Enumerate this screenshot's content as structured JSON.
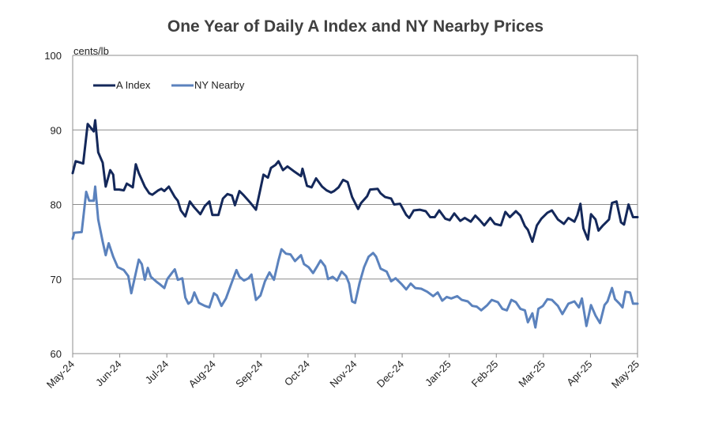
{
  "chart_data": {
    "type": "line",
    "title": "One Year of Daily A Index and NY Nearby Prices",
    "ylabel": "cents/lb",
    "xlabel": "",
    "ylim": [
      60,
      100
    ],
    "yticks": [
      60,
      70,
      80,
      90,
      100
    ],
    "grid": true,
    "legend_position": "top-left",
    "x_tick_labels": [
      "May-24",
      "Jun-24",
      "Jul-24",
      "Aug-24",
      "Sep-24",
      "Oct-24",
      "Nov-24",
      "Dec-24",
      "Jan-25",
      "Feb-25",
      "Mar-25",
      "Apr-25",
      "May-25"
    ],
    "series": [
      {
        "name": "A Index",
        "color": "#14285a",
        "points": [
          [
            "2024-05-01",
            84.2
          ],
          [
            "2024-05-03",
            85.8
          ],
          [
            "2024-05-08",
            85.5
          ],
          [
            "2024-05-11",
            90.8
          ],
          [
            "2024-05-15",
            89.8
          ],
          [
            "2024-05-16",
            91.3
          ],
          [
            "2024-05-18",
            87.0
          ],
          [
            "2024-05-21",
            85.6
          ],
          [
            "2024-05-23",
            82.4
          ],
          [
            "2024-05-26",
            84.6
          ],
          [
            "2024-05-28",
            84.0
          ],
          [
            "2024-05-29",
            82.0
          ],
          [
            "2024-06-01",
            82.0
          ],
          [
            "2024-06-04",
            81.9
          ],
          [
            "2024-06-06",
            82.8
          ],
          [
            "2024-06-10",
            82.3
          ],
          [
            "2024-06-12",
            85.4
          ],
          [
            "2024-06-14",
            84.2
          ],
          [
            "2024-06-18",
            82.4
          ],
          [
            "2024-06-21",
            81.5
          ],
          [
            "2024-06-23",
            81.3
          ],
          [
            "2024-06-27",
            81.9
          ],
          [
            "2024-06-29",
            82.1
          ],
          [
            "2024-07-01",
            81.8
          ],
          [
            "2024-07-04",
            82.4
          ],
          [
            "2024-07-08",
            81.0
          ],
          [
            "2024-07-10",
            80.5
          ],
          [
            "2024-07-12",
            79.2
          ],
          [
            "2024-07-15",
            78.4
          ],
          [
            "2024-07-18",
            80.4
          ],
          [
            "2024-07-21",
            79.6
          ],
          [
            "2024-07-25",
            78.7
          ],
          [
            "2024-07-28",
            79.8
          ],
          [
            "2024-07-31",
            80.4
          ],
          [
            "2024-08-02",
            78.6
          ],
          [
            "2024-08-06",
            78.6
          ],
          [
            "2024-08-09",
            80.8
          ],
          [
            "2024-08-12",
            81.4
          ],
          [
            "2024-08-15",
            81.2
          ],
          [
            "2024-08-17",
            79.9
          ],
          [
            "2024-08-20",
            81.8
          ],
          [
            "2024-08-23",
            81.2
          ],
          [
            "2024-08-27",
            80.3
          ],
          [
            "2024-08-31",
            79.3
          ],
          [
            "2024-09-03",
            82.1
          ],
          [
            "2024-09-05",
            84.0
          ],
          [
            "2024-09-08",
            83.6
          ],
          [
            "2024-09-10",
            84.9
          ],
          [
            "2024-09-13",
            85.3
          ],
          [
            "2024-09-15",
            85.8
          ],
          [
            "2024-09-18",
            84.6
          ],
          [
            "2024-09-21",
            85.1
          ],
          [
            "2024-09-25",
            84.5
          ],
          [
            "2024-09-30",
            83.8
          ],
          [
            "2024-10-01",
            84.8
          ],
          [
            "2024-10-04",
            82.5
          ],
          [
            "2024-10-07",
            82.3
          ],
          [
            "2024-10-10",
            83.5
          ],
          [
            "2024-10-14",
            82.4
          ],
          [
            "2024-10-17",
            81.9
          ],
          [
            "2024-10-20",
            81.6
          ],
          [
            "2024-10-22",
            81.8
          ],
          [
            "2024-10-25",
            82.3
          ],
          [
            "2024-10-28",
            83.3
          ],
          [
            "2024-10-31",
            83.0
          ],
          [
            "2024-11-03",
            81.0
          ],
          [
            "2024-11-07",
            79.4
          ],
          [
            "2024-11-09",
            80.2
          ],
          [
            "2024-11-13",
            81.1
          ],
          [
            "2024-11-15",
            82.0
          ],
          [
            "2024-11-20",
            82.1
          ],
          [
            "2024-11-22",
            81.5
          ],
          [
            "2024-11-25",
            81.0
          ],
          [
            "2024-11-29",
            80.8
          ],
          [
            "2024-12-01",
            80.0
          ],
          [
            "2024-12-05",
            80.1
          ],
          [
            "2024-12-09",
            78.6
          ],
          [
            "2024-12-11",
            78.2
          ],
          [
            "2024-12-14",
            79.2
          ],
          [
            "2024-12-18",
            79.3
          ],
          [
            "2024-12-22",
            79.1
          ],
          [
            "2024-12-25",
            78.3
          ],
          [
            "2024-12-28",
            78.3
          ],
          [
            "2024-12-31",
            79.2
          ],
          [
            "2025-01-04",
            78.1
          ],
          [
            "2025-01-07",
            77.9
          ],
          [
            "2025-01-10",
            78.8
          ],
          [
            "2025-01-14",
            77.8
          ],
          [
            "2025-01-17",
            78.2
          ],
          [
            "2025-01-21",
            77.7
          ],
          [
            "2025-01-24",
            78.5
          ],
          [
            "2025-01-27",
            77.9
          ],
          [
            "2025-01-30",
            77.2
          ],
          [
            "2025-02-03",
            78.2
          ],
          [
            "2025-02-06",
            77.4
          ],
          [
            "2025-02-10",
            77.2
          ],
          [
            "2025-02-13",
            79.0
          ],
          [
            "2025-02-16",
            78.3
          ],
          [
            "2025-02-20",
            79.1
          ],
          [
            "2025-02-23",
            78.5
          ],
          [
            "2025-02-26",
            77.1
          ],
          [
            "2025-02-28",
            76.6
          ],
          [
            "2025-03-03",
            75.0
          ],
          [
            "2025-03-06",
            77.2
          ],
          [
            "2025-03-09",
            78.1
          ],
          [
            "2025-03-13",
            78.9
          ],
          [
            "2025-03-16",
            79.2
          ],
          [
            "2025-03-20",
            78.0
          ],
          [
            "2025-03-24",
            77.4
          ],
          [
            "2025-03-27",
            78.2
          ],
          [
            "2025-03-31",
            77.7
          ],
          [
            "2025-04-02",
            78.6
          ],
          [
            "2025-04-04",
            80.1
          ],
          [
            "2025-04-06",
            76.8
          ],
          [
            "2025-04-09",
            75.3
          ],
          [
            "2025-04-11",
            78.7
          ],
          [
            "2025-04-14",
            78.0
          ],
          [
            "2025-04-16",
            76.5
          ],
          [
            "2025-04-19",
            77.2
          ],
          [
            "2025-04-23",
            78.0
          ],
          [
            "2025-04-25",
            80.2
          ],
          [
            "2025-04-28",
            80.4
          ],
          [
            "2025-05-01",
            77.6
          ],
          [
            "2025-05-03",
            77.3
          ],
          [
            "2025-05-06",
            80.0
          ],
          [
            "2025-05-09",
            78.3
          ],
          [
            "2025-05-12",
            78.3
          ]
        ]
      },
      {
        "name": "NY Nearby",
        "color": "#5b82bd",
        "points": [
          [
            "2024-05-01",
            75.4
          ],
          [
            "2024-05-02",
            76.2
          ],
          [
            "2024-05-07",
            76.3
          ],
          [
            "2024-05-10",
            81.7
          ],
          [
            "2024-05-12",
            80.5
          ],
          [
            "2024-05-15",
            80.5
          ],
          [
            "2024-05-16",
            82.4
          ],
          [
            "2024-05-18",
            78.0
          ],
          [
            "2024-05-21",
            75.0
          ],
          [
            "2024-05-23",
            73.2
          ],
          [
            "2024-05-25",
            74.8
          ],
          [
            "2024-05-28",
            73.0
          ],
          [
            "2024-05-31",
            71.6
          ],
          [
            "2024-06-04",
            71.2
          ],
          [
            "2024-06-07",
            70.4
          ],
          [
            "2024-06-09",
            68.1
          ],
          [
            "2024-06-12",
            70.8
          ],
          [
            "2024-06-14",
            72.6
          ],
          [
            "2024-06-16",
            72.0
          ],
          [
            "2024-06-18",
            69.9
          ],
          [
            "2024-06-20",
            71.5
          ],
          [
            "2024-06-22",
            70.3
          ],
          [
            "2024-06-26",
            69.6
          ],
          [
            "2024-06-28",
            69.3
          ],
          [
            "2024-07-01",
            68.8
          ],
          [
            "2024-07-03",
            70.0
          ],
          [
            "2024-07-06",
            70.8
          ],
          [
            "2024-07-08",
            71.3
          ],
          [
            "2024-07-10",
            69.9
          ],
          [
            "2024-07-13",
            70.1
          ],
          [
            "2024-07-15",
            67.5
          ],
          [
            "2024-07-17",
            66.7
          ],
          [
            "2024-07-19",
            67.0
          ],
          [
            "2024-07-21",
            68.2
          ],
          [
            "2024-07-24",
            66.8
          ],
          [
            "2024-07-28",
            66.4
          ],
          [
            "2024-07-31",
            66.2
          ],
          [
            "2024-08-03",
            68.1
          ],
          [
            "2024-08-05",
            67.8
          ],
          [
            "2024-08-08",
            66.4
          ],
          [
            "2024-08-11",
            67.4
          ],
          [
            "2024-08-15",
            69.6
          ],
          [
            "2024-08-18",
            71.2
          ],
          [
            "2024-08-20",
            70.3
          ],
          [
            "2024-08-23",
            69.8
          ],
          [
            "2024-08-26",
            70.1
          ],
          [
            "2024-08-28",
            70.6
          ],
          [
            "2024-08-31",
            67.2
          ],
          [
            "2024-09-03",
            67.8
          ],
          [
            "2024-09-06",
            69.7
          ],
          [
            "2024-09-09",
            70.9
          ],
          [
            "2024-09-12",
            69.9
          ],
          [
            "2024-09-15",
            72.5
          ],
          [
            "2024-09-17",
            74.0
          ],
          [
            "2024-09-20",
            73.4
          ],
          [
            "2024-09-23",
            73.3
          ],
          [
            "2024-09-26",
            72.4
          ],
          [
            "2024-09-30",
            73.2
          ],
          [
            "2024-10-02",
            72.0
          ],
          [
            "2024-10-05",
            71.6
          ],
          [
            "2024-10-08",
            70.8
          ],
          [
            "2024-10-11",
            71.8
          ],
          [
            "2024-10-13",
            72.5
          ],
          [
            "2024-10-16",
            71.7
          ],
          [
            "2024-10-18",
            70.0
          ],
          [
            "2024-10-21",
            70.3
          ],
          [
            "2024-10-24",
            69.8
          ],
          [
            "2024-10-27",
            71.0
          ],
          [
            "2024-10-30",
            70.4
          ],
          [
            "2024-11-01",
            69.4
          ],
          [
            "2024-11-03",
            67.0
          ],
          [
            "2024-11-05",
            66.8
          ],
          [
            "2024-11-08",
            69.5
          ],
          [
            "2024-11-11",
            71.6
          ],
          [
            "2024-11-14",
            73.0
          ],
          [
            "2024-11-17",
            73.5
          ],
          [
            "2024-11-19",
            73.0
          ],
          [
            "2024-11-22",
            71.4
          ],
          [
            "2024-11-26",
            71.0
          ],
          [
            "2024-11-29",
            69.7
          ],
          [
            "2024-12-02",
            70.1
          ],
          [
            "2024-12-06",
            69.3
          ],
          [
            "2024-12-09",
            68.6
          ],
          [
            "2024-12-12",
            69.4
          ],
          [
            "2024-12-15",
            68.8
          ],
          [
            "2024-12-19",
            68.7
          ],
          [
            "2024-12-23",
            68.3
          ],
          [
            "2024-12-27",
            67.7
          ],
          [
            "2024-12-30",
            68.2
          ],
          [
            "2025-01-02",
            67.1
          ],
          [
            "2025-01-05",
            67.6
          ],
          [
            "2025-01-08",
            67.4
          ],
          [
            "2025-01-12",
            67.7
          ],
          [
            "2025-01-15",
            67.2
          ],
          [
            "2025-01-19",
            67.0
          ],
          [
            "2025-01-22",
            66.4
          ],
          [
            "2025-01-25",
            66.3
          ],
          [
            "2025-01-28",
            65.8
          ],
          [
            "2025-02-01",
            66.5
          ],
          [
            "2025-02-04",
            67.2
          ],
          [
            "2025-02-08",
            66.9
          ],
          [
            "2025-02-11",
            66.0
          ],
          [
            "2025-02-14",
            65.8
          ],
          [
            "2025-02-17",
            67.2
          ],
          [
            "2025-02-20",
            66.9
          ],
          [
            "2025-02-23",
            66.0
          ],
          [
            "2025-02-26",
            65.8
          ],
          [
            "2025-02-28",
            64.2
          ],
          [
            "2025-03-03",
            65.4
          ],
          [
            "2025-03-05",
            63.5
          ],
          [
            "2025-03-07",
            66.0
          ],
          [
            "2025-03-10",
            66.4
          ],
          [
            "2025-03-13",
            67.3
          ],
          [
            "2025-03-16",
            67.2
          ],
          [
            "2025-03-20",
            66.4
          ],
          [
            "2025-03-23",
            65.3
          ],
          [
            "2025-03-27",
            66.7
          ],
          [
            "2025-03-31",
            67.0
          ],
          [
            "2025-04-03",
            66.2
          ],
          [
            "2025-04-05",
            67.4
          ],
          [
            "2025-04-08",
            63.7
          ],
          [
            "2025-04-11",
            66.5
          ],
          [
            "2025-04-14",
            65.1
          ],
          [
            "2025-04-17",
            64.1
          ],
          [
            "2025-04-20",
            66.5
          ],
          [
            "2025-04-22",
            67.0
          ],
          [
            "2025-04-25",
            68.8
          ],
          [
            "2025-04-27",
            67.3
          ],
          [
            "2025-04-30",
            66.7
          ],
          [
            "2025-05-02",
            66.2
          ],
          [
            "2025-05-04",
            68.3
          ],
          [
            "2025-05-07",
            68.2
          ],
          [
            "2025-05-09",
            66.7
          ],
          [
            "2025-05-12",
            66.7
          ]
        ]
      }
    ]
  }
}
